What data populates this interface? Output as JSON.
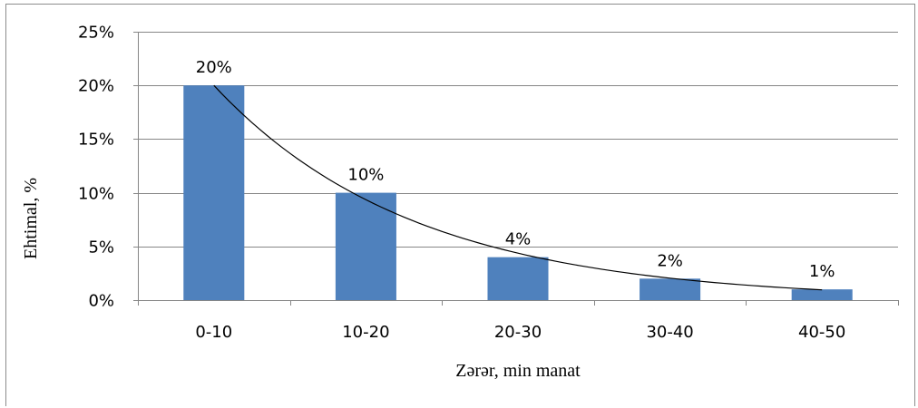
{
  "chart_data": {
    "type": "bar",
    "categories": [
      "0-10",
      "10-20",
      "20-30",
      "30-40",
      "40-50"
    ],
    "values": [
      20,
      10,
      4,
      2,
      1
    ],
    "data_labels": [
      "20%",
      "10%",
      "4%",
      "2%",
      "1%"
    ],
    "xlabel": "Zərər, min manat",
    "ylabel": "Ehtimal, %",
    "ylim": [
      0,
      25
    ],
    "y_ticks": [
      0,
      5,
      10,
      15,
      20,
      25
    ],
    "y_tick_labels": [
      "0%",
      "5%",
      "10%",
      "15%",
      "20%",
      "25%"
    ],
    "grid": true,
    "trendline": "exponential",
    "bar_color": "#4F81BD",
    "grid_color": "#868686"
  }
}
